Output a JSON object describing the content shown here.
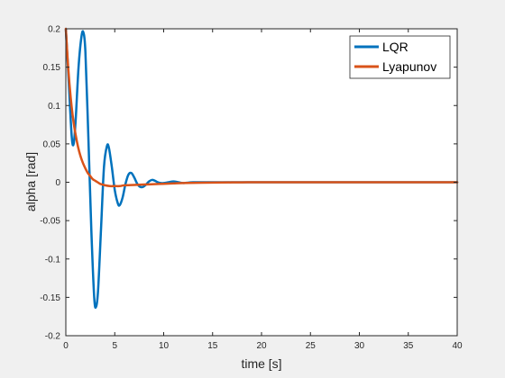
{
  "chart_data": {
    "type": "line",
    "xlabel": "time [s]",
    "ylabel": "alpha [rad]",
    "xlim": [
      0,
      40
    ],
    "ylim": [
      -0.2,
      0.2
    ],
    "xticks": [
      0,
      5,
      10,
      15,
      20,
      25,
      30,
      35,
      40
    ],
    "yticks": [
      -0.2,
      -0.15,
      -0.1,
      -0.05,
      0,
      0.05,
      0.1,
      0.15,
      0.2
    ],
    "xtick_labels": [
      "0",
      "5",
      "10",
      "15",
      "20",
      "25",
      "30",
      "35",
      "40"
    ],
    "ytick_labels": [
      "-0.2",
      "-0.15",
      "-0.1",
      "-0.05",
      "0",
      "0.05",
      "0.1",
      "0.15",
      "0.2"
    ],
    "grid": false,
    "legend_position": "top-right",
    "series": [
      {
        "name": "LQR",
        "color": "#0072BD",
        "x": [
          0,
          0.3,
          0.6,
          0.8,
          1.0,
          1.3,
          1.6,
          1.8,
          2.0,
          2.3,
          2.6,
          2.9,
          3.1,
          3.3,
          3.6,
          3.9,
          4.2,
          4.4,
          4.7,
          5.0,
          5.3,
          5.5,
          5.8,
          6.1,
          6.4,
          6.7,
          7.0,
          7.3,
          7.6,
          7.9,
          8.2,
          8.5,
          8.8,
          9.1,
          9.4,
          9.7,
          10.0,
          10.5,
          11.0,
          11.5,
          12.0,
          13.0,
          14.0,
          16.0,
          18.0,
          20.0,
          25.0,
          30.0,
          35.0,
          40.0
        ],
        "y": [
          0.2,
          0.13,
          0.06,
          0.05,
          0.08,
          0.15,
          0.19,
          0.195,
          0.17,
          0.06,
          -0.06,
          -0.15,
          -0.162,
          -0.14,
          -0.06,
          0.02,
          0.047,
          0.045,
          0.02,
          -0.01,
          -0.027,
          -0.03,
          -0.02,
          -0.002,
          0.01,
          0.012,
          0.006,
          -0.002,
          -0.006,
          -0.006,
          -0.003,
          0.001,
          0.003,
          0.002,
          0.0,
          -0.001,
          -0.001,
          0.0,
          0.001,
          0.0,
          -0.001,
          0.0,
          0.0,
          0.0,
          0.0,
          0.0,
          0.0,
          0.0,
          0.0,
          0.0
        ]
      },
      {
        "name": "Lyapunov",
        "color": "#D95319",
        "x": [
          0,
          0.25,
          0.5,
          0.75,
          1.0,
          1.25,
          1.5,
          1.75,
          2.0,
          2.25,
          2.5,
          2.75,
          3.0,
          3.25,
          3.5,
          3.75,
          4.0,
          4.5,
          5.0,
          5.5,
          6.0,
          7.0,
          8.0,
          9.0,
          10.0,
          11.0,
          12.0,
          14.0,
          16.0,
          18.0,
          20.0,
          25.0,
          30.0,
          35.0,
          40.0
        ],
        "y": [
          0.2,
          0.148,
          0.11,
          0.082,
          0.062,
          0.046,
          0.034,
          0.025,
          0.018,
          0.012,
          0.008,
          0.004,
          0.002,
          0.0,
          -0.002,
          -0.003,
          -0.004,
          -0.005,
          -0.005,
          -0.005,
          -0.004,
          -0.0035,
          -0.003,
          -0.0025,
          -0.002,
          -0.0015,
          -0.001,
          -0.0006,
          -0.0003,
          -0.0001,
          0.0,
          0.0,
          0.0,
          0.0,
          0.0
        ]
      }
    ]
  }
}
